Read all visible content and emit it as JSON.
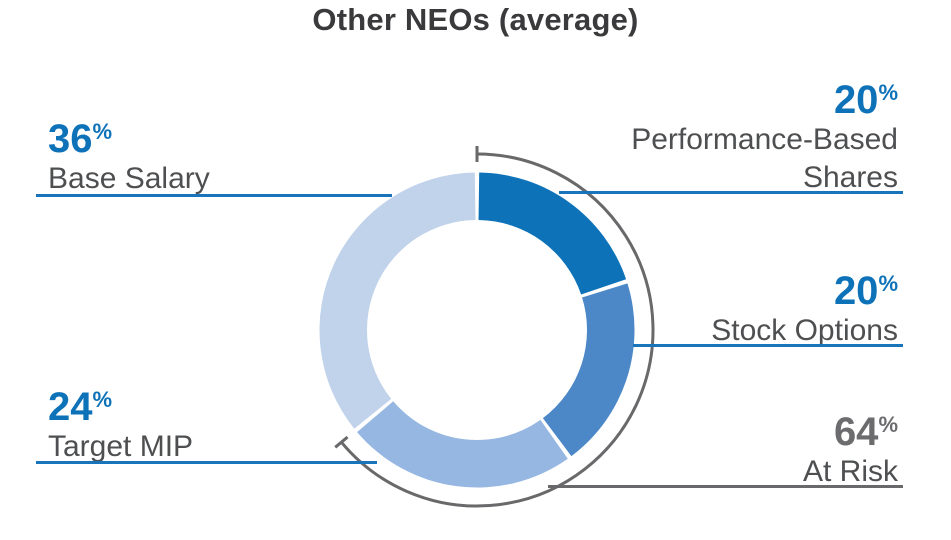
{
  "title": "Other NEOs (average)",
  "colors": {
    "accent_blue": "#0E72B9",
    "medium_blue": "#4C88C7",
    "light_blue": "#96B7E1",
    "pale_blue": "#C0D3EB",
    "leader_line_blue": "#1874BB",
    "annotation_gray": "#69696B",
    "label_gray": "#4E4F51",
    "title_gray": "#3A3A3C",
    "at_risk_value_gray": "#6C6C6F"
  },
  "chart_data": {
    "type": "pie",
    "subtype": "donut",
    "title": "Other NEOs (average)",
    "start_angle_deg": 0,
    "direction": "clockwise",
    "legend_position": "callouts",
    "segments": [
      {
        "label": "Performance-Based Shares",
        "value": 20,
        "color": "#0E72B9"
      },
      {
        "label": "Stock Options",
        "value": 20,
        "color": "#4C88C7"
      },
      {
        "label": "Target MIP",
        "value": 24,
        "color": "#96B7E1"
      },
      {
        "label": "Base Salary",
        "value": 36,
        "color": "#C0D3EB"
      }
    ],
    "annotation_arc": {
      "label": "At Risk",
      "value": 64,
      "color": "#69696B",
      "covers": [
        "Performance-Based Shares",
        "Stock Options",
        "Target MIP"
      ]
    }
  },
  "callouts": {
    "base_salary": {
      "value": "36",
      "unit": "%",
      "label": "Base Salary"
    },
    "performance": {
      "value": "20",
      "unit": "%",
      "label_line1": "Performance-Based",
      "label_line2": "Shares"
    },
    "stock_options": {
      "value": "20",
      "unit": "%",
      "label": "Stock Options"
    },
    "target_mip": {
      "value": "24",
      "unit": "%",
      "label": "Target MIP"
    },
    "at_risk": {
      "value": "64",
      "unit": "%",
      "label": "At Risk"
    }
  }
}
